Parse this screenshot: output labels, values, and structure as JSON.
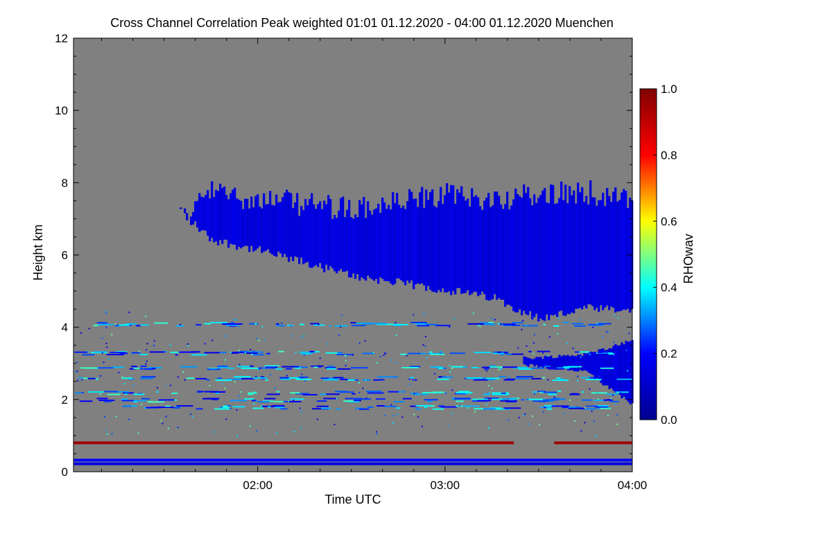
{
  "chart_data": {
    "type": "heatmap",
    "title": "Cross Channel Correlation Peak weighted   01:01 01.12.2020 - 04:00 01.12.2020 Muenchen",
    "xlabel": "Time UTC",
    "ylabel": "Height km",
    "colorbar_label": "RHOwav",
    "background_color": "#808080",
    "x_range": [
      "01:01",
      "04:00"
    ],
    "x_ticks": [
      "02:00",
      "03:00",
      "04:00"
    ],
    "ylim": [
      0,
      12
    ],
    "y_ticks": [
      "0",
      "2",
      "4",
      "6",
      "8",
      "10",
      "12"
    ],
    "colorbar_range": [
      0.0,
      1.0
    ],
    "colorbar_ticks": [
      "0.0",
      "0.2",
      "0.4",
      "0.6",
      "0.8",
      "1.0"
    ],
    "colormap": [
      "#00008f",
      "#0000ff",
      "#00ffff",
      "#ffff00",
      "#ff0000",
      "#800000"
    ],
    "cloud_layer": {
      "description_value_approx": 0.12,
      "top_km": [
        [
          1.55,
          7.3
        ],
        [
          1.75,
          8.1
        ],
        [
          2.0,
          7.9
        ],
        [
          2.5,
          7.6
        ],
        [
          3.0,
          8.0
        ],
        [
          3.25,
          7.9
        ],
        [
          3.5,
          8.0
        ],
        [
          3.75,
          8.1
        ],
        [
          4.0,
          7.8
        ]
      ],
      "base_km": [
        [
          1.55,
          7.2
        ],
        [
          1.75,
          6.3
        ],
        [
          2.0,
          6.0
        ],
        [
          2.5,
          5.3
        ],
        [
          3.0,
          4.9
        ],
        [
          3.25,
          4.7
        ],
        [
          3.5,
          4.1
        ],
        [
          3.75,
          4.4
        ],
        [
          4.0,
          4.3
        ]
      ]
    },
    "lower_layer": {
      "value_approx": 0.12,
      "start_time": "03:25",
      "top_km": [
        [
          3.45,
          3.1
        ],
        [
          3.75,
          3.2
        ],
        [
          4.0,
          3.6
        ]
      ],
      "base_km": [
        [
          3.45,
          3.0
        ],
        [
          3.75,
          2.8
        ],
        [
          4.0,
          1.9
        ]
      ]
    },
    "persistent_layers": [
      {
        "height_km": 0.8,
        "value_approx": 0.95,
        "note": "gap 03:22-03:35"
      },
      {
        "height_km": 0.32,
        "value_approx": 0.2
      },
      {
        "height_km": 0.22,
        "value_approx": 0.15
      }
    ],
    "scattered_levels_km": [
      4.1,
      3.3,
      2.9,
      2.6,
      2.2,
      2.0,
      1.8
    ]
  }
}
